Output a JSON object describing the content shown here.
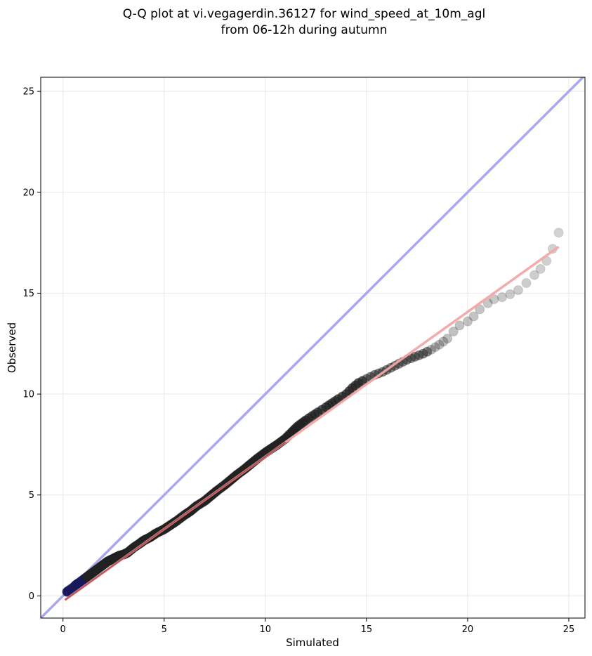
{
  "chart_data": {
    "type": "scatter",
    "title": "Q-Q plot at vi.vegagerdin.36127 for wind_speed_at_10m_agl",
    "subtitle": "from 06-12h during autumn",
    "xlabel": "Simulated",
    "ylabel": "Observed",
    "xlim": [
      -1.1,
      25.8
    ],
    "ylim": [
      -1.1,
      25.7
    ],
    "xticks": [
      0,
      5,
      10,
      15,
      20,
      25
    ],
    "yticks": [
      0,
      5,
      10,
      15,
      20,
      25
    ],
    "grid": true,
    "colors": {
      "points": "#222222",
      "identity_line": "#a6a8f2",
      "fit_line": "#f4a6a6",
      "fit_line_dark": "#8b1a1a",
      "grid": "#ebebeb",
      "low_tail": "#1a1a5e"
    },
    "identity_line": {
      "x": [
        -1.1,
        25.8
      ],
      "y": [
        -1.1,
        25.8
      ]
    },
    "fit_line": {
      "x": [
        0.1,
        24.5
      ],
      "y": [
        -0.2,
        17.3
      ]
    },
    "points": {
      "x": [
        0.2,
        0.35,
        0.5,
        0.65,
        0.8,
        1.0,
        1.2,
        1.4,
        1.6,
        1.8,
        2.0,
        2.2,
        2.4,
        2.6,
        2.8,
        3.0,
        3.2,
        3.5,
        3.8,
        4.0,
        4.3,
        4.6,
        5.0,
        5.3,
        5.6,
        6.0,
        6.3,
        6.6,
        7.0,
        7.3,
        7.6,
        8.0,
        8.3,
        8.6,
        9.0,
        9.3,
        9.6,
        10.0,
        10.3,
        10.6,
        11.0,
        11.3,
        11.6,
        12.0,
        12.3,
        12.6,
        13.0,
        13.3,
        13.6,
        14.0,
        14.3,
        14.6,
        15.0,
        15.4,
        15.8,
        16.2,
        16.6,
        17.0,
        17.4,
        17.8,
        18.2,
        18.6,
        19.0,
        19.3,
        19.6,
        20.0,
        20.3,
        20.6,
        21.0,
        21.3,
        21.7,
        22.1,
        22.5,
        22.9,
        23.3,
        23.6,
        23.9,
        24.2,
        24.5
      ],
      "y": [
        0.2,
        0.3,
        0.4,
        0.55,
        0.65,
        0.8,
        0.95,
        1.1,
        1.25,
        1.4,
        1.55,
        1.7,
        1.8,
        1.9,
        2.0,
        2.05,
        2.15,
        2.4,
        2.6,
        2.75,
        2.9,
        3.1,
        3.3,
        3.5,
        3.7,
        4.0,
        4.2,
        4.45,
        4.7,
        4.95,
        5.2,
        5.5,
        5.75,
        6.0,
        6.3,
        6.55,
        6.8,
        7.1,
        7.3,
        7.5,
        7.8,
        8.1,
        8.4,
        8.7,
        8.9,
        9.1,
        9.35,
        9.55,
        9.75,
        10.0,
        10.3,
        10.55,
        10.75,
        10.95,
        11.1,
        11.3,
        11.5,
        11.7,
        11.85,
        12.0,
        12.2,
        12.45,
        12.75,
        13.1,
        13.4,
        13.6,
        13.85,
        14.2,
        14.5,
        14.7,
        14.8,
        14.95,
        15.15,
        15.5,
        15.9,
        16.2,
        16.6,
        17.2,
        18.0
      ]
    }
  }
}
